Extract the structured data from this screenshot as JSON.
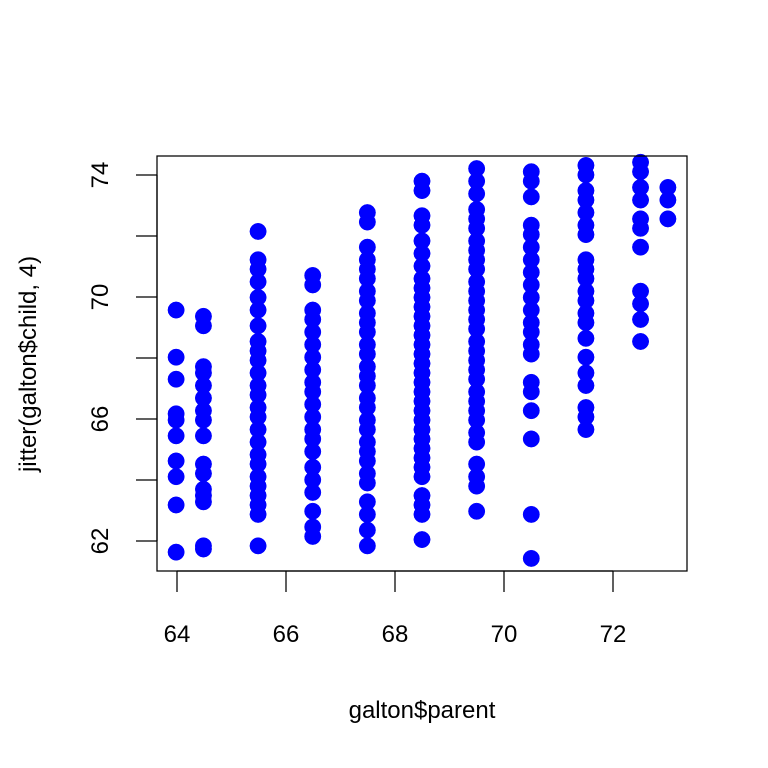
{
  "chart_data": {
    "type": "scatter",
    "title": "",
    "xlabel": "galton$parent",
    "ylabel": "jitter(galton$child, 4)",
    "xlim": [
      63.65,
      73.35
    ],
    "ylim": [
      61.1,
      74.3
    ],
    "xticks": [
      64,
      66,
      68,
      70,
      72
    ],
    "yticks": [
      62,
      66,
      70,
      74
    ],
    "x_tick_labels": [
      "64",
      "66",
      "68",
      "70",
      "72"
    ],
    "y_tick_labels": [
      "62",
      "66",
      "70",
      "74"
    ],
    "point_color": "#0000FF",
    "grid": false,
    "series": [
      {
        "points": [
          [
            64.0,
            69.4
          ],
          [
            64.0,
            67.9
          ],
          [
            64.0,
            67.2
          ],
          [
            64.0,
            66.1
          ],
          [
            64.0,
            65.9
          ],
          [
            64.0,
            65.4
          ],
          [
            64.0,
            64.6
          ],
          [
            64.0,
            64.1
          ],
          [
            64.0,
            63.2
          ],
          [
            64.0,
            61.7
          ],
          [
            64.5,
            69.2
          ],
          [
            64.5,
            68.9
          ],
          [
            64.5,
            67.6
          ],
          [
            64.5,
            67.4
          ],
          [
            64.5,
            67.0
          ],
          [
            64.5,
            66.6
          ],
          [
            64.5,
            66.2
          ],
          [
            64.5,
            65.9
          ],
          [
            64.5,
            65.4
          ],
          [
            64.5,
            64.5
          ],
          [
            64.5,
            64.2
          ],
          [
            64.5,
            63.7
          ],
          [
            64.5,
            63.5
          ],
          [
            64.5,
            63.3
          ],
          [
            64.5,
            61.9
          ],
          [
            64.5,
            61.8
          ],
          [
            65.5,
            71.9
          ],
          [
            65.5,
            71.0
          ],
          [
            65.5,
            70.7
          ],
          [
            65.5,
            70.3
          ],
          [
            65.5,
            69.8
          ],
          [
            65.5,
            69.4
          ],
          [
            65.5,
            68.9
          ],
          [
            65.5,
            68.4
          ],
          [
            65.5,
            68.1
          ],
          [
            65.5,
            67.8
          ],
          [
            65.5,
            67.4
          ],
          [
            65.5,
            67.0
          ],
          [
            65.5,
            66.7
          ],
          [
            65.5,
            66.3
          ],
          [
            65.5,
            66.0
          ],
          [
            65.5,
            65.6
          ],
          [
            65.5,
            65.2
          ],
          [
            65.5,
            64.8
          ],
          [
            65.5,
            64.5
          ],
          [
            65.5,
            64.1
          ],
          [
            65.5,
            63.8
          ],
          [
            65.5,
            63.5
          ],
          [
            65.5,
            63.2
          ],
          [
            65.5,
            62.9
          ],
          [
            65.5,
            61.9
          ],
          [
            66.5,
            70.5
          ],
          [
            66.5,
            70.2
          ],
          [
            66.5,
            69.4
          ],
          [
            66.5,
            69.1
          ],
          [
            66.5,
            68.7
          ],
          [
            66.5,
            68.3
          ],
          [
            66.5,
            67.9
          ],
          [
            66.5,
            67.5
          ],
          [
            66.5,
            67.1
          ],
          [
            66.5,
            66.8
          ],
          [
            66.5,
            66.4
          ],
          [
            66.5,
            66.0
          ],
          [
            66.5,
            65.6
          ],
          [
            66.5,
            65.3
          ],
          [
            66.5,
            64.9
          ],
          [
            66.5,
            64.4
          ],
          [
            66.5,
            64.0
          ],
          [
            66.5,
            63.6
          ],
          [
            66.5,
            63.0
          ],
          [
            66.5,
            62.5
          ],
          [
            66.5,
            62.2
          ],
          [
            67.5,
            72.5
          ],
          [
            67.5,
            72.2
          ],
          [
            67.5,
            71.4
          ],
          [
            67.5,
            71.0
          ],
          [
            67.5,
            70.7
          ],
          [
            67.5,
            70.4
          ],
          [
            67.5,
            70.0
          ],
          [
            67.5,
            69.7
          ],
          [
            67.5,
            69.3
          ],
          [
            67.5,
            69.0
          ],
          [
            67.5,
            68.7
          ],
          [
            67.5,
            68.3
          ],
          [
            67.5,
            68.0
          ],
          [
            67.5,
            67.6
          ],
          [
            67.5,
            67.3
          ],
          [
            67.5,
            67.0
          ],
          [
            67.5,
            66.6
          ],
          [
            67.5,
            66.3
          ],
          [
            67.5,
            65.9
          ],
          [
            67.5,
            65.6
          ],
          [
            67.5,
            65.2
          ],
          [
            67.5,
            64.9
          ],
          [
            67.5,
            64.6
          ],
          [
            67.5,
            64.2
          ],
          [
            67.5,
            63.9
          ],
          [
            67.5,
            63.3
          ],
          [
            67.5,
            62.9
          ],
          [
            67.5,
            62.4
          ],
          [
            67.5,
            61.9
          ],
          [
            68.5,
            73.5
          ],
          [
            68.5,
            73.2
          ],
          [
            68.5,
            72.4
          ],
          [
            68.5,
            72.1
          ],
          [
            68.5,
            71.6
          ],
          [
            68.5,
            71.2
          ],
          [
            68.5,
            70.8
          ],
          [
            68.5,
            70.4
          ],
          [
            68.5,
            70.1
          ],
          [
            68.5,
            69.8
          ],
          [
            68.5,
            69.5
          ],
          [
            68.5,
            69.2
          ],
          [
            68.5,
            68.9
          ],
          [
            68.5,
            68.6
          ],
          [
            68.5,
            68.3
          ],
          [
            68.5,
            68.0
          ],
          [
            68.5,
            67.7
          ],
          [
            68.5,
            67.4
          ],
          [
            68.5,
            67.1
          ],
          [
            68.5,
            66.8
          ],
          [
            68.5,
            66.5
          ],
          [
            68.5,
            66.2
          ],
          [
            68.5,
            65.9
          ],
          [
            68.5,
            65.6
          ],
          [
            68.5,
            65.3
          ],
          [
            68.5,
            65.0
          ],
          [
            68.5,
            64.7
          ],
          [
            68.5,
            64.4
          ],
          [
            68.5,
            64.1
          ],
          [
            68.5,
            63.5
          ],
          [
            68.5,
            63.2
          ],
          [
            68.5,
            62.9
          ],
          [
            68.5,
            62.1
          ],
          [
            69.5,
            73.9
          ],
          [
            69.5,
            73.5
          ],
          [
            69.5,
            73.1
          ],
          [
            69.5,
            72.6
          ],
          [
            69.5,
            72.3
          ],
          [
            69.5,
            72.0
          ],
          [
            69.5,
            71.6
          ],
          [
            69.5,
            71.3
          ],
          [
            69.5,
            71.0
          ],
          [
            69.5,
            70.7
          ],
          [
            69.5,
            70.3
          ],
          [
            69.5,
            70.0
          ],
          [
            69.5,
            69.7
          ],
          [
            69.5,
            69.4
          ],
          [
            69.5,
            69.1
          ],
          [
            69.5,
            68.8
          ],
          [
            69.5,
            68.4
          ],
          [
            69.5,
            68.1
          ],
          [
            69.5,
            67.8
          ],
          [
            69.5,
            67.5
          ],
          [
            69.5,
            67.2
          ],
          [
            69.5,
            66.8
          ],
          [
            69.5,
            66.5
          ],
          [
            69.5,
            66.2
          ],
          [
            69.5,
            65.9
          ],
          [
            69.5,
            65.5
          ],
          [
            69.5,
            65.2
          ],
          [
            69.5,
            64.5
          ],
          [
            69.5,
            64.1
          ],
          [
            69.5,
            63.8
          ],
          [
            69.5,
            63.0
          ],
          [
            70.5,
            73.8
          ],
          [
            70.5,
            73.5
          ],
          [
            70.5,
            73.0
          ],
          [
            70.5,
            72.1
          ],
          [
            70.5,
            71.8
          ],
          [
            70.5,
            71.4
          ],
          [
            70.5,
            71.0
          ],
          [
            70.5,
            70.6
          ],
          [
            70.5,
            70.2
          ],
          [
            70.5,
            69.8
          ],
          [
            70.5,
            69.4
          ],
          [
            70.5,
            69.0
          ],
          [
            70.5,
            68.7
          ],
          [
            70.5,
            68.3
          ],
          [
            70.5,
            68.0
          ],
          [
            70.5,
            67.1
          ],
          [
            70.5,
            66.8
          ],
          [
            70.5,
            66.2
          ],
          [
            70.5,
            65.3
          ],
          [
            70.5,
            62.9
          ],
          [
            70.5,
            61.5
          ],
          [
            71.5,
            74.0
          ],
          [
            71.5,
            73.7
          ],
          [
            71.5,
            73.2
          ],
          [
            71.5,
            72.9
          ],
          [
            71.5,
            72.5
          ],
          [
            71.5,
            72.1
          ],
          [
            71.5,
            71.8
          ],
          [
            71.5,
            71.0
          ],
          [
            71.5,
            70.7
          ],
          [
            71.5,
            70.4
          ],
          [
            71.5,
            70.0
          ],
          [
            71.5,
            69.7
          ],
          [
            71.5,
            69.3
          ],
          [
            71.5,
            69.0
          ],
          [
            71.5,
            68.5
          ],
          [
            71.5,
            67.9
          ],
          [
            71.5,
            67.4
          ],
          [
            71.5,
            67.0
          ],
          [
            71.5,
            66.3
          ],
          [
            71.5,
            66.0
          ],
          [
            71.5,
            65.6
          ],
          [
            72.5,
            74.1
          ],
          [
            72.5,
            73.8
          ],
          [
            72.5,
            73.3
          ],
          [
            72.5,
            72.9
          ],
          [
            72.5,
            72.3
          ],
          [
            72.5,
            72.0
          ],
          [
            72.5,
            71.4
          ],
          [
            72.5,
            70.0
          ],
          [
            72.5,
            69.6
          ],
          [
            72.5,
            69.1
          ],
          [
            72.5,
            68.4
          ],
          [
            73.0,
            73.3
          ],
          [
            73.0,
            72.9
          ],
          [
            73.0,
            72.3
          ]
        ]
      }
    ]
  }
}
